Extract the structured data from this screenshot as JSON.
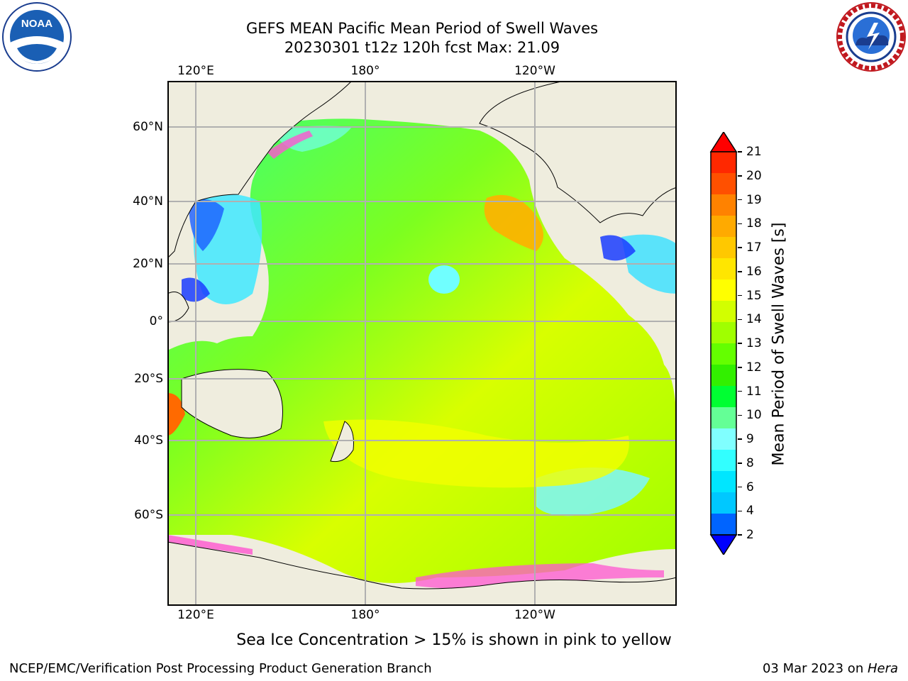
{
  "header": {
    "title_line1": "GEFS MEAN Pacific Mean Period of Swell Waves",
    "title_line2": "20230301 t12z 120h fcst   Max: 21.09"
  },
  "logos": {
    "left": "noaa-logo",
    "right": "national-weather-service-logo"
  },
  "map": {
    "lon_ticks_top": [
      "120°E",
      "180°",
      "120°W"
    ],
    "lon_ticks_bottom": [
      "120°E",
      "180°",
      "120°W"
    ],
    "lat_ticks": [
      "60°N",
      "40°N",
      "20°N",
      "0°",
      "20°S",
      "40°S",
      "60°S"
    ],
    "colors": {
      "land": "#efedde",
      "grid": "#b0b0b0",
      "coast": "#000000"
    }
  },
  "colorbar": {
    "label": "Mean Period of Swell Waves [s]",
    "tick_labels": [
      "2",
      "4",
      "6",
      "8",
      "9",
      "10",
      "11",
      "12",
      "13",
      "14",
      "15",
      "16",
      "17",
      "18",
      "19",
      "20",
      "21"
    ],
    "colors": [
      "#0000ff",
      "#0064ff",
      "#00c8ff",
      "#00e6ff",
      "#32ffff",
      "#80ffff",
      "#64ff96",
      "#00ff32",
      "#32f000",
      "#64ff00",
      "#a0ff00",
      "#d2ff00",
      "#ffff00",
      "#ffe600",
      "#ffc800",
      "#ffaa00",
      "#ff8200",
      "#ff5000",
      "#ff2800",
      "#ff0000"
    ]
  },
  "notes": {
    "ice": "Sea Ice Concentration > 15% is shown in pink to yellow"
  },
  "footer": {
    "left": "NCEP/EMC/Verification Post Processing Product Generation Branch",
    "right_date": "03 Mar 2023 on ",
    "right_machine": "Hera"
  }
}
